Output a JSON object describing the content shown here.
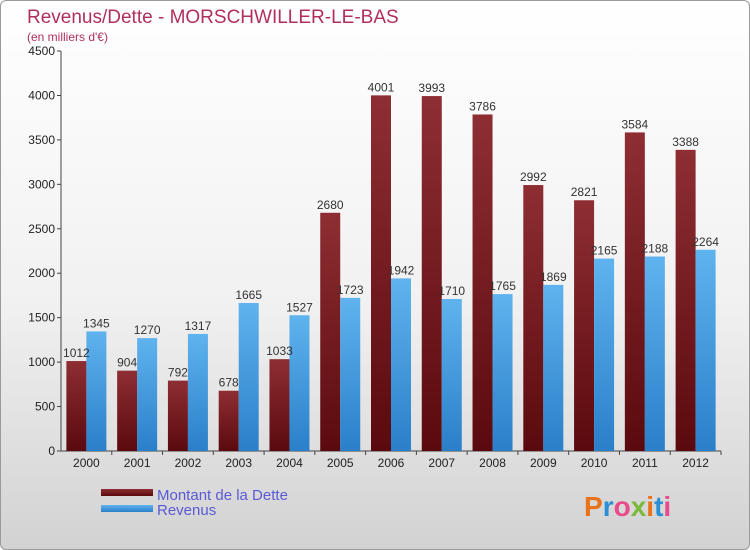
{
  "chart_data": {
    "type": "bar",
    "title": "Revenus/Dette - MORSCHWILLER-LE-BAS",
    "subtitle": "(en milliers d'€)",
    "categories": [
      "2000",
      "2001",
      "2002",
      "2003",
      "2004",
      "2005",
      "2006",
      "2007",
      "2008",
      "2009",
      "2010",
      "2011",
      "2012"
    ],
    "series": [
      {
        "name": "Montant de la Dette",
        "color": "#7a1a1f",
        "values": [
          1012,
          904,
          792,
          678,
          1033,
          2680,
          4001,
          3993,
          3786,
          2992,
          2821,
          3584,
          3388
        ]
      },
      {
        "name": "Revenus",
        "color": "#3d9de3",
        "values": [
          1345,
          1270,
          1317,
          1665,
          1527,
          1723,
          1942,
          1710,
          1765,
          1869,
          2165,
          2188,
          2264
        ]
      }
    ],
    "ylim": [
      0,
      4500
    ],
    "yticks": [
      0,
      500,
      1000,
      1500,
      2000,
      2500,
      3000,
      3500,
      4000,
      4500
    ],
    "grid": false,
    "legend": "bottom-left"
  },
  "logo": {
    "text": "Proxiti"
  }
}
